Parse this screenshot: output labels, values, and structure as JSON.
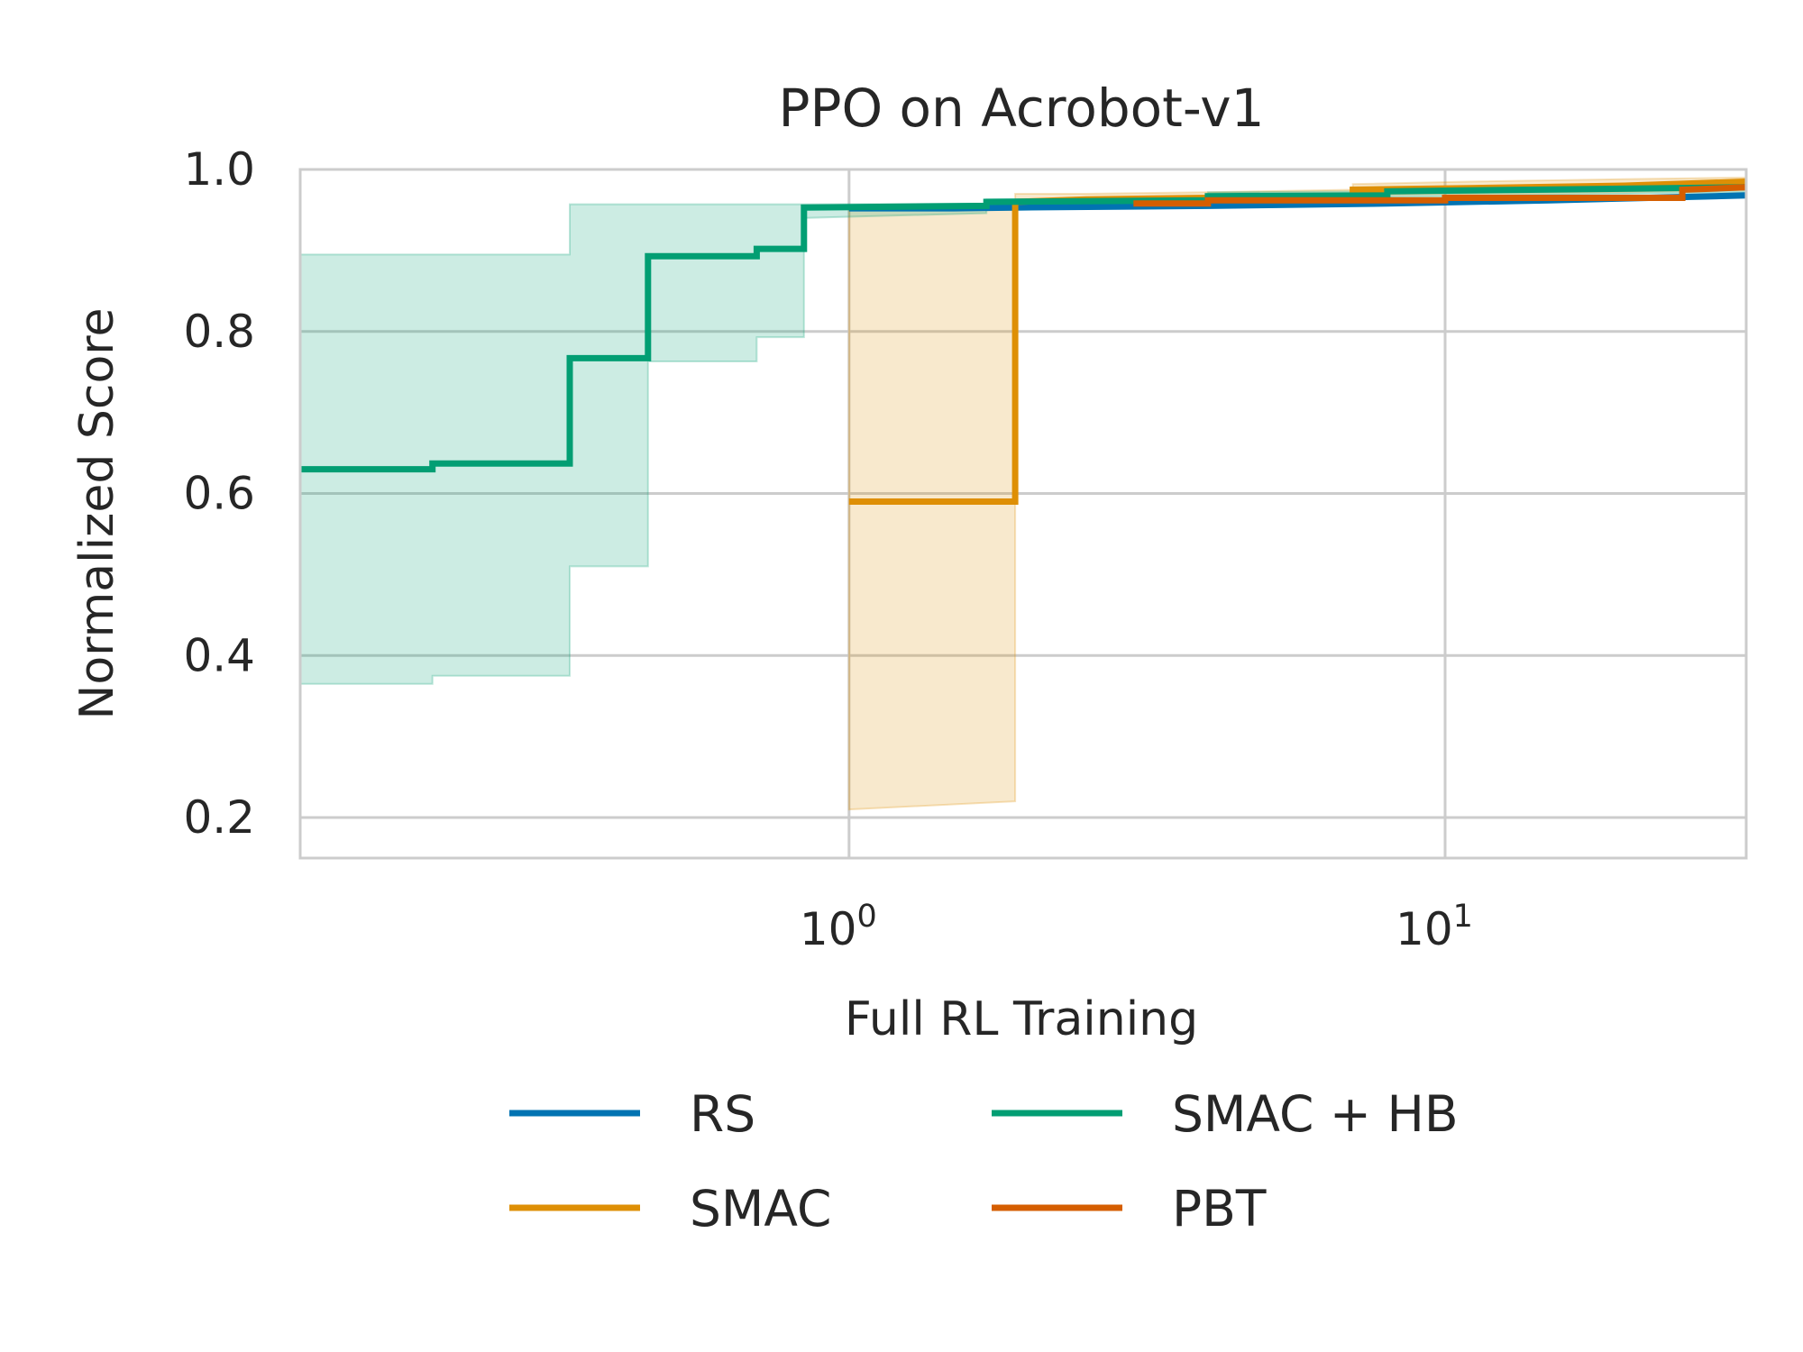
{
  "chart_data": {
    "type": "line",
    "title": "PPO on Acrobot-v1",
    "xlabel": "Full RL Training",
    "ylabel": "Normalized Score",
    "xscale": "log",
    "xlim": [
      0.12,
      32
    ],
    "ylim": [
      0.15,
      1.0
    ],
    "grid": true,
    "legend_position": "bottom-center",
    "y_ticks": [
      "0.2",
      "0.4",
      "0.6",
      "0.8",
      "1.0"
    ],
    "x_ticks": [
      {
        "value": 1,
        "base": "10",
        "exp": "0"
      },
      {
        "value": 10,
        "base": "10",
        "exp": "1"
      }
    ],
    "series": [
      {
        "name": "RS",
        "color": "#0173b2",
        "x": [
          1.0,
          1.5,
          1.9,
          4.0,
          8.0,
          15.0,
          32.0
        ],
        "y": [
          0.952,
          0.952,
          0.953,
          0.955,
          0.958,
          0.962,
          0.968
        ]
      },
      {
        "name": "SMAC",
        "color": "#de8f05",
        "x": [
          1.0,
          1.9,
          1.9,
          2.5,
          4.0,
          7.0,
          7.0,
          11.0,
          20.0,
          32.0
        ],
        "y": [
          0.59,
          0.59,
          0.96,
          0.963,
          0.965,
          0.966,
          0.975,
          0.977,
          0.98,
          0.985
        ],
        "band_upper": [
          0.95,
          0.95,
          0.97,
          0.97,
          0.972,
          0.975,
          0.982,
          0.985,
          0.988,
          0.99
        ],
        "band_lower": [
          0.21,
          0.22,
          0.955,
          0.958,
          0.96,
          0.962,
          0.968,
          0.97,
          0.972,
          0.975
        ]
      },
      {
        "name": "SMAC + HB",
        "color": "#029e73",
        "x": [
          0.12,
          0.2,
          0.2,
          0.34,
          0.34,
          0.46,
          0.46,
          0.7,
          0.7,
          0.84,
          0.84,
          1.7,
          1.7,
          4.0,
          4.0,
          8.0,
          8.0,
          32.0
        ],
        "y": [
          0.63,
          0.63,
          0.637,
          0.637,
          0.767,
          0.767,
          0.893,
          0.893,
          0.902,
          0.902,
          0.953,
          0.955,
          0.96,
          0.962,
          0.967,
          0.968,
          0.973,
          0.978
        ],
        "band_upper": [
          0.895,
          0.895,
          0.895,
          0.895,
          0.957,
          0.957,
          0.957,
          0.957,
          0.957,
          0.957,
          0.957,
          0.958,
          0.963,
          0.965,
          0.972,
          0.973,
          0.978,
          0.982
        ],
        "band_lower": [
          0.365,
          0.365,
          0.375,
          0.375,
          0.51,
          0.51,
          0.763,
          0.763,
          0.793,
          0.793,
          0.94,
          0.946,
          0.955,
          0.958,
          0.96,
          0.962,
          0.966,
          0.972
        ]
      },
      {
        "name": "PBT",
        "color": "#d55e00",
        "x": [
          3.0,
          4.0,
          4.0,
          10.0,
          10.0,
          25.0,
          25.0,
          32.0
        ],
        "y": [
          0.958,
          0.958,
          0.962,
          0.962,
          0.965,
          0.965,
          0.975,
          0.978
        ]
      }
    ]
  }
}
